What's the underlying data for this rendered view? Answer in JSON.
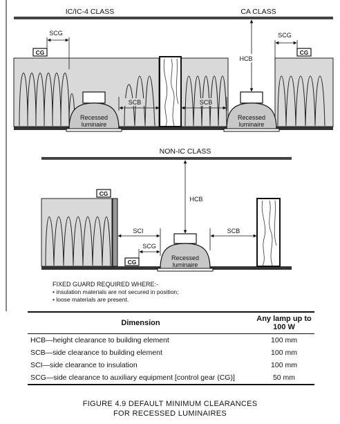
{
  "diagram": {
    "top_left_title": "IC/IC-4 CLASS",
    "top_right_title": "CA CLASS",
    "middle_title": "NON-IC CLASS",
    "scg": "SCG",
    "scb": "SCB",
    "sci": "SCI",
    "hcb": "HCB",
    "cg": "CG",
    "luminaire_line1": "Recessed",
    "luminaire_line2": "luminaire",
    "guard_heading": "FIXED GUARD REQUIRED WHERE:-",
    "guard_bullets": [
      "• insulation materials are not secured in position;",
      "• loose materials are present."
    ]
  },
  "table": {
    "headers": [
      "Dimension",
      "Any lamp up to 100 W"
    ],
    "rows": [
      {
        "dimension": "HCB—height clearance to building element",
        "value": "100 mm"
      },
      {
        "dimension": "SCB—side clearance to building element",
        "value": "100 mm"
      },
      {
        "dimension": "SCI—side clearance to insulation",
        "value": "100 mm"
      },
      {
        "dimension": "SCG—side clearance to auxiliary equipment [control gear (CG)]",
        "value": "50 mm"
      }
    ]
  },
  "caption": {
    "line1": "FIGURE  4.9   DEFAULT MINIMUM CLEARANCES",
    "line2": "FOR RECESSED LUMINAIRES"
  }
}
